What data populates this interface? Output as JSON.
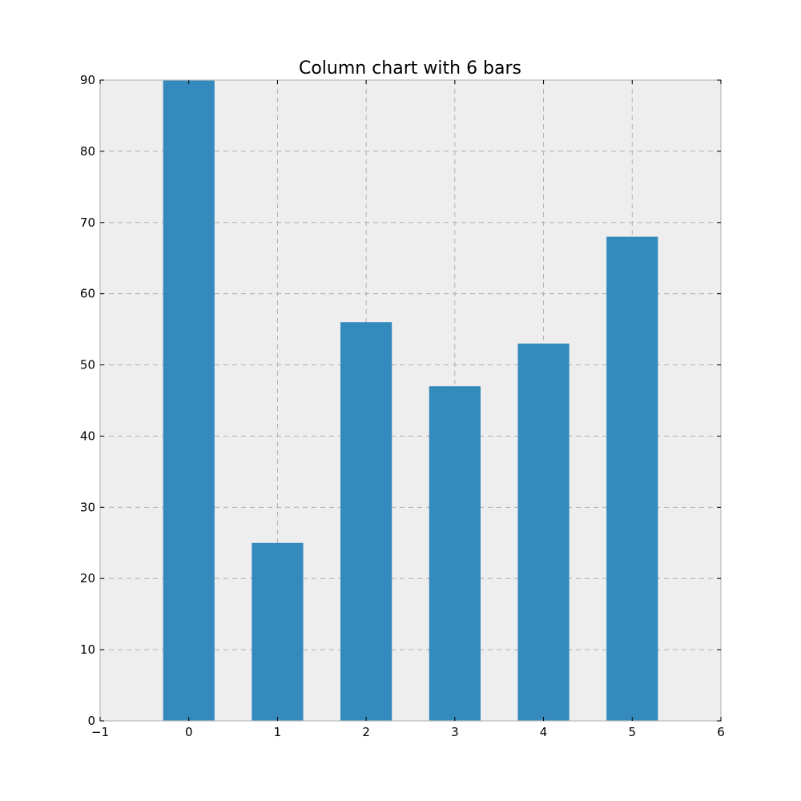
{
  "chart_data": {
    "type": "bar",
    "title": "Column chart with 6 bars",
    "xlabel": "",
    "ylabel": "",
    "x": [
      0,
      1,
      2,
      3,
      4,
      5
    ],
    "values": [
      90,
      25,
      56,
      47,
      53,
      68
    ],
    "bar_width": 0.58,
    "xlim": [
      -1,
      6
    ],
    "ylim": [
      0,
      90
    ],
    "xticks": [
      -1,
      0,
      1,
      2,
      3,
      4,
      5,
      6
    ],
    "xtick_labels": [
      "−1",
      "0",
      "1",
      "2",
      "3",
      "4",
      "5",
      "6"
    ],
    "yticks": [
      0,
      10,
      20,
      30,
      40,
      50,
      60,
      70,
      80,
      90
    ],
    "ytick_labels": [
      "0",
      "10",
      "20",
      "30",
      "40",
      "50",
      "60",
      "70",
      "80",
      "90"
    ],
    "grid": true,
    "legend": "none",
    "colors": {
      "bar": "#348abd",
      "plot_background": "#eeeeee",
      "grid": "#b0b0b0",
      "frame": "#bcbcbc"
    }
  }
}
